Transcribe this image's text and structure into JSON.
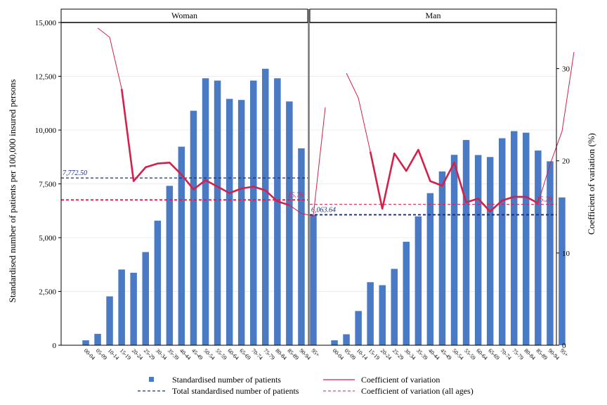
{
  "chart_data": {
    "type": "bar",
    "ylabel": "Standardised number of patients per 100,000 insured persons",
    "y2label": "Coefficient of variation (%)",
    "ylim": [
      0,
      15000
    ],
    "y2lim": [
      0,
      35
    ],
    "yticks": [
      "0",
      "2,500",
      "5,000",
      "7,500",
      "10,000",
      "12,500",
      "15,000"
    ],
    "y2ticks": [
      "0",
      "10",
      "20",
      "30"
    ],
    "grid": true,
    "legend_position": "bottom",
    "colors": {
      "bar": "#4a7ac4",
      "cv_line": "#d4204a",
      "total_line": "#1a2a80",
      "cv_all_line": "#d4204a"
    },
    "categories": [
      "00-04",
      "05-09",
      "10-14",
      "15-19",
      "20-24",
      "25-29",
      "30-34",
      "35-39",
      "40-44",
      "45-49",
      "50-54",
      "55-59",
      "60-64",
      "65-69",
      "70-74",
      "75-79",
      "80-84",
      "85-89",
      "90-94",
      "95+"
    ],
    "legend": {
      "bar": "Standardised number of patients",
      "cv": "Coefficient of variation",
      "total": "Total standardised number of patients",
      "cv_all": "Coefficient of variation (all ages)"
    },
    "panels": [
      {
        "title": "Woman",
        "patients": [
          230,
          530,
          2270,
          3520,
          3370,
          4330,
          5790,
          7410,
          9230,
          10900,
          12410,
          12300,
          11450,
          11400,
          12300,
          12850,
          12410,
          11330,
          9150,
          6060
        ],
        "cv_thin": [
          null,
          34.4,
          33.4,
          27.8
        ],
        "cv_thick": [
          null,
          null,
          null,
          27.8,
          17.8,
          19.3,
          19.7,
          19.8,
          18.5,
          16.9,
          17.9,
          17.2,
          16.5,
          17.0,
          17.2,
          16.8,
          15.6,
          15.2
        ],
        "cv_thin_end": [
          15.2,
          14.3,
          14.0,
          25.8
        ],
        "total": 7772.5,
        "total_label": "7,772.50",
        "cv_all": 15.76,
        "cv_all_label": "15.76"
      },
      {
        "title": "Man",
        "patients": [
          230,
          510,
          1590,
          2930,
          2790,
          3550,
          4810,
          5990,
          7070,
          8080,
          8850,
          9540,
          8840,
          8750,
          9620,
          9950,
          9880,
          9050,
          8550,
          6870
        ],
        "cv_thin": [
          null,
          29.5,
          26.8,
          21.0
        ],
        "cv_thick": [
          null,
          null,
          null,
          21.0,
          14.8,
          20.8,
          18.9,
          21.2,
          17.8,
          17.3,
          19.8,
          15.5,
          15.9,
          14.5,
          15.7,
          16.1,
          16.1,
          15.4
        ],
        "cv_thin_end": [
          15.4,
          19.6,
          23.2,
          31.8
        ],
        "total": 6063.64,
        "total_label": "6,063.64",
        "cv_all": 15.28,
        "cv_all_label": "15.28"
      }
    ]
  }
}
